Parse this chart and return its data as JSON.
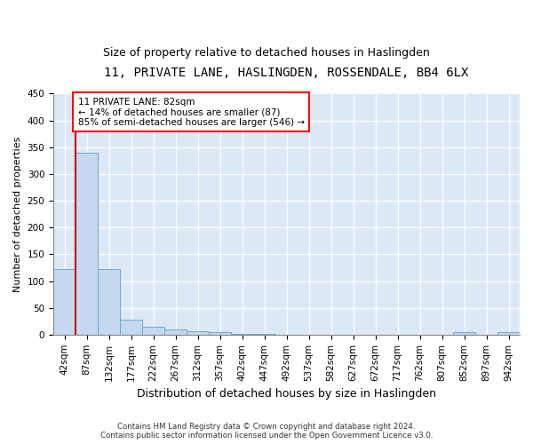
{
  "title": "11, PRIVATE LANE, HASLINGDEN, ROSSENDALE, BB4 6LX",
  "subtitle": "Size of property relative to detached houses in Haslingden",
  "xlabel": "Distribution of detached houses by size in Haslingden",
  "ylabel": "Number of detached properties",
  "bar_labels": [
    "42sqm",
    "87sqm",
    "132sqm",
    "177sqm",
    "222sqm",
    "267sqm",
    "312sqm",
    "357sqm",
    "402sqm",
    "447sqm",
    "492sqm",
    "537sqm",
    "582sqm",
    "627sqm",
    "672sqm",
    "717sqm",
    "762sqm",
    "807sqm",
    "852sqm",
    "897sqm",
    "942sqm"
  ],
  "bar_values": [
    122,
    340,
    122,
    28,
    15,
    9,
    6,
    5,
    2,
    1,
    0,
    0,
    0,
    0,
    0,
    0,
    0,
    0,
    4,
    0,
    5
  ],
  "bar_color": "#c5d8f0",
  "bar_edge_color": "#6aaad4",
  "annotation_text_line1": "11 PRIVATE LANE: 82sqm",
  "annotation_text_line2": "← 14% of detached houses are smaller (87)",
  "annotation_text_line3": "85% of semi-detached houses are larger (546) →",
  "vline_color": "#cc0000",
  "vline_x_index": 1,
  "ylim": [
    0,
    450
  ],
  "yticks": [
    0,
    50,
    100,
    150,
    200,
    250,
    300,
    350,
    400,
    450
  ],
  "background_color": "#dce8f5",
  "footnote": "Contains HM Land Registry data © Crown copyright and database right 2024.\nContains public sector information licensed under the Open Government Licence v3.0.",
  "title_fontsize": 10,
  "subtitle_fontsize": 9,
  "xlabel_fontsize": 9,
  "ylabel_fontsize": 8,
  "tick_fontsize": 7.5,
  "annot_fontsize": 7.5
}
